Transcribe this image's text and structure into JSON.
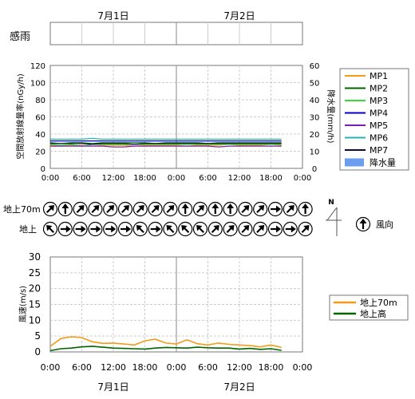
{
  "chart_data": [
    {
      "id": "rain-sense",
      "type": "table",
      "ylabel": "感雨",
      "date_labels": [
        "7月1日",
        "7月2日"
      ],
      "x_ticks": [
        "0:00",
        "6:00",
        "12:00",
        "18:00",
        "0:00",
        "6:00",
        "12:00",
        "18:00",
        "0:00"
      ]
    },
    {
      "id": "dose-rate",
      "type": "line",
      "ylabel": "空間放射線量率(nGy/h)",
      "y2label": "降水量(mm/h)",
      "ylim": [
        0,
        120
      ],
      "y2lim": [
        0,
        60
      ],
      "yticks": [
        0,
        20,
        40,
        60,
        80,
        100,
        120
      ],
      "y2ticks": [
        0,
        10,
        20,
        30,
        40,
        50,
        60
      ],
      "x_ticks": [
        "0:00",
        "6:00",
        "12:00",
        "18:00",
        "0:00",
        "6:00",
        "12:00",
        "18:00",
        "0:00"
      ],
      "x": [
        0,
        2,
        4,
        6,
        8,
        10,
        12,
        14,
        16,
        18,
        20,
        22,
        24,
        26,
        28,
        30,
        32,
        34,
        36,
        38,
        40,
        42,
        44
      ],
      "grid": true,
      "legend": "right",
      "series": [
        {
          "name": "MP1",
          "color": "#f59b16",
          "values": [
            27,
            26,
            27,
            27,
            26,
            27,
            27,
            27,
            26,
            27,
            27,
            27,
            27,
            26,
            27,
            27,
            27,
            28,
            27,
            27,
            27,
            28,
            27
          ]
        },
        {
          "name": "MP2",
          "color": "#006400",
          "values": [
            30,
            29,
            30,
            30,
            29,
            30,
            30,
            30,
            30,
            30,
            29,
            30,
            30,
            30,
            30,
            29,
            30,
            30,
            30,
            30,
            30,
            30,
            30
          ]
        },
        {
          "name": "MP3",
          "color": "#33dd33",
          "values": [
            28,
            27,
            28,
            26,
            28,
            28,
            28,
            28,
            28,
            28,
            28,
            28,
            28,
            28,
            28,
            28,
            28,
            28,
            28,
            28,
            28,
            28,
            28
          ]
        },
        {
          "name": "MP4",
          "color": "#0000cc",
          "values": [
            32,
            32,
            32,
            32,
            32,
            32,
            32,
            32,
            32,
            32,
            32,
            32,
            32,
            32,
            32,
            32,
            32,
            32,
            32,
            32,
            32,
            32,
            32
          ]
        },
        {
          "name": "MP5",
          "color": "#7a1fb5",
          "values": [
            26,
            26,
            26,
            26,
            26,
            26,
            25,
            25,
            26,
            26,
            26,
            26,
            26,
            26,
            26,
            26,
            25,
            26,
            26,
            26,
            26,
            26,
            26
          ]
        },
        {
          "name": "MP6",
          "color": "#26b3b3",
          "values": [
            34,
            34,
            34,
            34,
            35,
            34,
            34,
            34,
            34,
            34,
            34,
            34,
            34,
            34,
            34,
            34,
            34,
            34,
            34,
            34,
            34,
            34,
            34
          ]
        },
        {
          "name": "MP7",
          "color": "#0a0a3c",
          "values": [
            29,
            29,
            29,
            29,
            28,
            29,
            29,
            29,
            28,
            29,
            29,
            29,
            29,
            29,
            29,
            29,
            29,
            29,
            29,
            29,
            29,
            29,
            29
          ]
        }
      ],
      "bar_series": {
        "name": "降水量",
        "color": "#6c9ef0",
        "values": []
      }
    },
    {
      "id": "wind-direction",
      "type": "table",
      "rows": [
        {
          "label": "地上70m",
          "angles": [
            45,
            0,
            45,
            45,
            45,
            45,
            45,
            45,
            45,
            0,
            45,
            0,
            0,
            45,
            45,
            90,
            45,
            0
          ]
        },
        {
          "label": "地上",
          "angles": [
            315,
            90,
            90,
            90,
            90,
            90,
            315,
            90,
            315,
            315,
            315,
            45,
            45,
            45,
            45,
            90,
            90,
            45
          ]
        }
      ],
      "legend_label": "風向",
      "north_label": "N"
    },
    {
      "id": "wind-speed",
      "type": "line",
      "ylabel": "風速(m/s)",
      "ylim": [
        0,
        30
      ],
      "yticks": [
        0,
        5,
        10,
        15,
        20,
        25,
        30
      ],
      "x_ticks": [
        "0:00",
        "6:00",
        "12:00",
        "18:00",
        "0:00",
        "6:00",
        "12:00",
        "18:00",
        "0:00"
      ],
      "date_labels": [
        "7月1日",
        "7月2日"
      ],
      "x": [
        0,
        2,
        4,
        6,
        8,
        10,
        12,
        14,
        16,
        18,
        20,
        22,
        24,
        26,
        28,
        30,
        32,
        34,
        36,
        38,
        40,
        42,
        44
      ],
      "grid": true,
      "legend": "right",
      "series": [
        {
          "name": "地上70m",
          "color": "#f59b16",
          "values": [
            1.8,
            4.2,
            4.8,
            4.5,
            3.2,
            2.7,
            2.8,
            2.5,
            2.2,
            3.5,
            4.0,
            2.8,
            2.5,
            3.8,
            2.6,
            2.2,
            2.8,
            2.4,
            2.2,
            2.0,
            1.6,
            2.2,
            1.4
          ]
        },
        {
          "name": "地上高",
          "color": "#006400",
          "values": [
            0.4,
            1.0,
            1.2,
            1.6,
            1.8,
            1.5,
            1.2,
            1.1,
            1.0,
            0.9,
            1.2,
            1.4,
            1.3,
            1.2,
            1.5,
            1.3,
            1.2,
            1.2,
            0.9,
            1.1,
            0.8,
            1.0,
            0.5
          ]
        }
      ]
    }
  ]
}
